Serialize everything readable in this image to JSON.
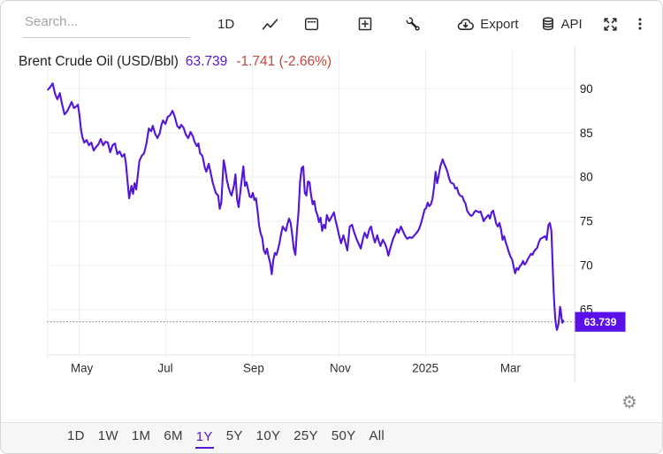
{
  "toolbar": {
    "search_placeholder": "Search...",
    "interval_label": "1D",
    "export_label": "Export",
    "api_label": "API"
  },
  "header": {
    "title": "Brent Crude Oil (USD/Bbl)",
    "price": "63.739",
    "change": "-1.741 (-2.66%)"
  },
  "colors": {
    "line": "#5417d6",
    "price_badge_bg": "#5a10e8",
    "change_negative": "#c2473d",
    "active_range": "#5417d6"
  },
  "range_bar": {
    "options": [
      "1D",
      "1W",
      "1M",
      "6M",
      "1Y",
      "5Y",
      "10Y",
      "25Y",
      "50Y",
      "All"
    ],
    "active": "1Y"
  },
  "chart_data": {
    "type": "line",
    "title": "Brent Crude Oil (USD/Bbl)",
    "series_name": "Brent Crude Oil",
    "unit": "USD/Bbl",
    "last_price": 63.739,
    "change": -1.741,
    "change_pct": "-2.66%",
    "y_ticks": [
      90,
      85,
      80,
      75,
      70,
      65
    ],
    "x_ticks": [
      "May",
      "Jul",
      "Sep",
      "Nov",
      "2025",
      "Mar"
    ],
    "ylim": [
      59.5,
      94.5
    ],
    "grid": true,
    "legend": false,
    "points": [
      [
        14,
        89.9
      ],
      [
        17,
        90.2
      ],
      [
        20,
        90.6
      ],
      [
        23,
        89.4
      ],
      [
        26,
        88.8
      ],
      [
        29,
        89.5
      ],
      [
        32,
        88.2
      ],
      [
        35,
        87.1
      ],
      [
        38,
        87.4
      ],
      [
        41,
        87.9
      ],
      [
        44,
        88.5
      ],
      [
        47,
        87.8
      ],
      [
        50,
        88.0
      ],
      [
        52,
        88.2
      ],
      [
        54,
        87.0
      ],
      [
        56,
        85.3
      ],
      [
        58,
        84.4
      ],
      [
        60,
        83.9
      ],
      [
        63,
        84.2
      ],
      [
        66,
        83.6
      ],
      [
        69,
        83.9
      ],
      [
        72,
        83.0
      ],
      [
        75,
        83.4
      ],
      [
        78,
        83.7
      ],
      [
        81,
        84.3
      ],
      [
        84,
        83.6
      ],
      [
        87,
        84.0
      ],
      [
        90,
        83.9
      ],
      [
        93,
        82.8
      ],
      [
        96,
        83.6
      ],
      [
        99,
        83.8
      ],
      [
        102,
        82.6
      ],
      [
        105,
        82.9
      ],
      [
        108,
        82.3
      ],
      [
        111,
        82.6
      ],
      [
        113,
        81.5
      ],
      [
        115,
        79.5
      ],
      [
        117,
        77.6
      ],
      [
        120,
        79.0
      ],
      [
        122,
        78.1
      ],
      [
        124,
        79.3
      ],
      [
        126,
        78.6
      ],
      [
        128,
        80.2
      ],
      [
        130,
        81.8
      ],
      [
        133,
        82.4
      ],
      [
        136,
        82.7
      ],
      [
        139,
        83.8
      ],
      [
        142,
        85.5
      ],
      [
        145,
        85.2
      ],
      [
        147,
        85.8
      ],
      [
        150,
        84.9
      ],
      [
        153,
        84.4
      ],
      [
        156,
        85.0
      ],
      [
        158,
        85.9
      ],
      [
        160,
        86.4
      ],
      [
        163,
        86.0
      ],
      [
        166,
        86.8
      ],
      [
        169,
        87.0
      ],
      [
        172,
        87.5
      ],
      [
        175,
        86.8
      ],
      [
        178,
        85.8
      ],
      [
        181,
        85.5
      ],
      [
        183,
        85.9
      ],
      [
        186,
        85.6
      ],
      [
        189,
        84.8
      ],
      [
        192,
        84.4
      ],
      [
        195,
        85.1
      ],
      [
        198,
        84.6
      ],
      [
        200,
        84.0
      ],
      [
        203,
        83.5
      ],
      [
        205,
        83.8
      ],
      [
        207,
        82.7
      ],
      [
        210,
        82.4
      ],
      [
        213,
        81.1
      ],
      [
        215,
        80.6
      ],
      [
        218,
        81.5
      ],
      [
        220,
        80.7
      ],
      [
        223,
        79.4
      ],
      [
        225,
        78.8
      ],
      [
        227,
        78.2
      ],
      [
        230,
        77.9
      ],
      [
        232,
        76.4
      ],
      [
        234,
        77.1
      ],
      [
        237,
        81.9
      ],
      [
        239,
        81.0
      ],
      [
        241,
        79.7
      ],
      [
        243,
        78.9
      ],
      [
        245,
        78.3
      ],
      [
        247,
        77.9
      ],
      [
        250,
        79.0
      ],
      [
        252,
        80.3
      ],
      [
        254,
        77.5
      ],
      [
        256,
        76.6
      ],
      [
        259,
        79.0
      ],
      [
        262,
        81.2
      ],
      [
        264,
        79.0
      ],
      [
        266,
        79.4
      ],
      [
        268,
        78.6
      ],
      [
        270,
        77.8
      ],
      [
        272,
        77.7
      ],
      [
        274,
        78.2
      ],
      [
        276,
        77.4
      ],
      [
        278,
        77.6
      ],
      [
        280,
        76.2
      ],
      [
        282,
        74.5
      ],
      [
        284,
        73.6
      ],
      [
        286,
        73.1
      ],
      [
        288,
        71.7
      ],
      [
        290,
        71.3
      ],
      [
        292,
        71.9
      ],
      [
        294,
        71.0
      ],
      [
        296,
        70.3
      ],
      [
        298,
        69.0
      ],
      [
        300,
        70.6
      ],
      [
        302,
        71.4
      ],
      [
        304,
        71.2
      ],
      [
        306,
        71.8
      ],
      [
        308,
        72.6
      ],
      [
        310,
        73.6
      ],
      [
        312,
        74.4
      ],
      [
        314,
        74.1
      ],
      [
        316,
        73.9
      ],
      [
        318,
        74.7
      ],
      [
        320,
        75.3
      ],
      [
        322,
        74.8
      ],
      [
        324,
        73.5
      ],
      [
        326,
        71.9
      ],
      [
        328,
        71.2
      ],
      [
        330,
        73.9
      ],
      [
        332,
        76.0
      ],
      [
        334,
        79.5
      ],
      [
        336,
        81.0
      ],
      [
        338,
        81.2
      ],
      [
        340,
        78.2
      ],
      [
        342,
        77.9
      ],
      [
        344,
        79.5
      ],
      [
        346,
        79.4
      ],
      [
        348,
        77.9
      ],
      [
        350,
        76.9
      ],
      [
        352,
        77.3
      ],
      [
        354,
        76.2
      ],
      [
        356,
        75.7
      ],
      [
        358,
        74.9
      ],
      [
        360,
        75.4
      ],
      [
        362,
        73.9
      ],
      [
        364,
        74.6
      ],
      [
        366,
        74.2
      ],
      [
        368,
        75.7
      ],
      [
        371,
        75.0
      ],
      [
        374,
        75.5
      ],
      [
        377,
        76.0
      ],
      [
        379,
        75.1
      ],
      [
        381,
        74.4
      ],
      [
        384,
        73.2
      ],
      [
        386,
        72.5
      ],
      [
        389,
        73.4
      ],
      [
        392,
        72.4
      ],
      [
        394,
        71.7
      ],
      [
        397,
        74.4
      ],
      [
        400,
        74.6
      ],
      [
        402,
        73.9
      ],
      [
        404,
        73.4
      ],
      [
        406,
        72.9
      ],
      [
        409,
        72.3
      ],
      [
        411,
        71.9
      ],
      [
        414,
        73.1
      ],
      [
        416,
        73.7
      ],
      [
        419,
        73.1
      ],
      [
        422,
        74.1
      ],
      [
        424,
        74.4
      ],
      [
        427,
        73.2
      ],
      [
        429,
        72.6
      ],
      [
        432,
        73.4
      ],
      [
        434,
        72.7
      ],
      [
        436,
        72.2
      ],
      [
        439,
        72.9
      ],
      [
        442,
        72.4
      ],
      [
        444,
        71.9
      ],
      [
        446,
        71.1
      ],
      [
        449,
        72.1
      ],
      [
        452,
        73.0
      ],
      [
        455,
        73.6
      ],
      [
        457,
        74.1
      ],
      [
        459,
        73.7
      ],
      [
        462,
        74.4
      ],
      [
        465,
        73.8
      ],
      [
        467,
        73.4
      ],
      [
        470,
        73.0
      ],
      [
        473,
        73.2
      ],
      [
        476,
        73.1
      ],
      [
        479,
        73.4
      ],
      [
        482,
        73.7
      ],
      [
        485,
        74.1
      ],
      [
        488,
        74.9
      ],
      [
        490,
        75.6
      ],
      [
        492,
        76.3
      ],
      [
        494,
        76.5
      ],
      [
        496,
        77.1
      ],
      [
        498,
        76.7
      ],
      [
        500,
        76.9
      ],
      [
        502,
        77.5
      ],
      [
        504,
        78.8
      ],
      [
        506,
        80.6
      ],
      [
        508,
        79.3
      ],
      [
        510,
        80.2
      ],
      [
        512,
        81.2
      ],
      [
        515,
        82.0
      ],
      [
        517,
        81.5
      ],
      [
        519,
        81.1
      ],
      [
        521,
        80.6
      ],
      [
        523,
        79.9
      ],
      [
        525,
        79.4
      ],
      [
        527,
        79.3
      ],
      [
        529,
        79.2
      ],
      [
        531,
        78.7
      ],
      [
        533,
        78.8
      ],
      [
        535,
        78.2
      ],
      [
        537,
        77.9
      ],
      [
        540,
        77.8
      ],
      [
        542,
        77.3
      ],
      [
        544,
        77.0
      ],
      [
        546,
        76.2
      ],
      [
        548,
        75.9
      ],
      [
        551,
        75.6
      ],
      [
        553,
        75.7
      ],
      [
        555,
        76.0
      ],
      [
        557,
        76.2
      ],
      [
        559,
        76.1
      ],
      [
        561,
        76.0
      ],
      [
        563,
        76.1
      ],
      [
        565,
        75.6
      ],
      [
        567,
        75.0
      ],
      [
        569,
        75.3
      ],
      [
        571,
        75.5
      ],
      [
        573,
        75.7
      ],
      [
        575,
        75.3
      ],
      [
        577,
        76.0
      ],
      [
        579,
        76.2
      ],
      [
        581,
        75.5
      ],
      [
        583,
        74.7
      ],
      [
        585,
        74.4
      ],
      [
        587,
        74.8
      ],
      [
        589,
        74.1
      ],
      [
        591,
        72.9
      ],
      [
        593,
        73.3
      ],
      [
        595,
        72.6
      ],
      [
        597,
        72.1
      ],
      [
        599,
        71.5
      ],
      [
        601,
        71.0
      ],
      [
        603,
        70.7
      ],
      [
        605,
        69.9
      ],
      [
        607,
        69.1
      ],
      [
        609,
        69.7
      ],
      [
        611,
        69.5
      ],
      [
        613,
        69.9
      ],
      [
        615,
        70.1
      ],
      [
        617,
        70.5
      ],
      [
        619,
        70.1
      ],
      [
        621,
        70.3
      ],
      [
        623,
        70.7
      ],
      [
        625,
        71.0
      ],
      [
        627,
        71.3
      ],
      [
        629,
        71.2
      ],
      [
        631,
        71.6
      ],
      [
        633,
        71.8
      ],
      [
        635,
        72.0
      ],
      [
        637,
        72.6
      ],
      [
        639,
        73.0
      ],
      [
        641,
        73.1
      ],
      [
        643,
        73.2
      ],
      [
        645,
        73.3
      ],
      [
        647,
        72.9
      ],
      [
        649,
        74.5
      ],
      [
        651,
        74.8
      ],
      [
        653,
        73.9
      ],
      [
        654,
        71.5
      ],
      [
        655,
        69.0
      ],
      [
        656,
        66.8
      ],
      [
        657,
        65.2
      ],
      [
        658,
        63.9
      ],
      [
        659,
        63.2
      ],
      [
        660,
        62.7
      ],
      [
        661,
        63.0
      ],
      [
        662,
        63.4
      ],
      [
        663,
        64.2
      ],
      [
        664,
        65.3
      ],
      [
        665,
        64.8
      ],
      [
        666,
        64.0
      ],
      [
        667,
        63.5
      ],
      [
        668,
        63.739
      ]
    ]
  }
}
